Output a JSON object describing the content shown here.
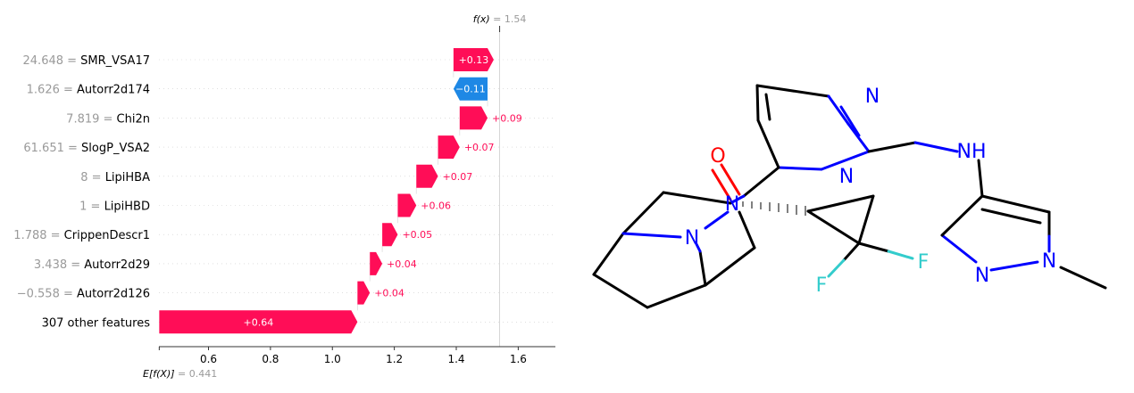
{
  "chart_data": {
    "type": "waterfall",
    "fx_label": "f(x)",
    "fx_value": "1.54",
    "fx": 1.54,
    "base_label": "E[f(X)]",
    "base_value_text": "0.441",
    "base": 0.441,
    "xlim": [
      0.44,
      1.72
    ],
    "xticks": [
      0.6,
      0.8,
      1.0,
      1.2,
      1.4,
      1.6
    ],
    "xtick_labels": [
      "0.6",
      "0.8",
      "1.0",
      "1.2",
      "1.4",
      "1.6"
    ],
    "colors": {
      "positive": "#ff0d57",
      "negative": "#1e88e5",
      "feature_value": "#9a9a9a"
    },
    "features": [
      {
        "value": "24.648",
        "name": "SMR_VSA17",
        "shap": 0.13,
        "label": "+0.13"
      },
      {
        "value": "1.626",
        "name": "Autorr2d174",
        "shap": -0.11,
        "label": "−0.11"
      },
      {
        "value": "7.819",
        "name": "Chi2n",
        "shap": 0.09,
        "label": "+0.09"
      },
      {
        "value": "61.651",
        "name": "SlogP_VSA2",
        "shap": 0.07,
        "label": "+0.07"
      },
      {
        "value": "8",
        "name": "LipiHBA",
        "shap": 0.07,
        "label": "+0.07"
      },
      {
        "value": "1",
        "name": "LipiHBD",
        "shap": 0.06,
        "label": "+0.06"
      },
      {
        "value": "1.788",
        "name": "CrippenDescr1",
        "shap": 0.05,
        "label": "+0.05"
      },
      {
        "value": "3.438",
        "name": "Autorr2d29",
        "shap": 0.04,
        "label": "+0.04"
      },
      {
        "value": "−0.558",
        "name": "Autorr2d126",
        "shap": 0.04,
        "label": "+0.04"
      },
      {
        "value": "",
        "name": "307 other features",
        "shap": 0.64,
        "label": "+0.64"
      }
    ]
  },
  "molecule": {
    "atom_labels": [
      "N",
      "N",
      "NH",
      "O",
      "N",
      "N",
      "F",
      "F",
      "N",
      "N"
    ],
    "colors": {
      "nitrogen": "#0000ff",
      "oxygen": "#ff0000",
      "fluorine": "#33cccc",
      "carbon": "#000000"
    }
  }
}
